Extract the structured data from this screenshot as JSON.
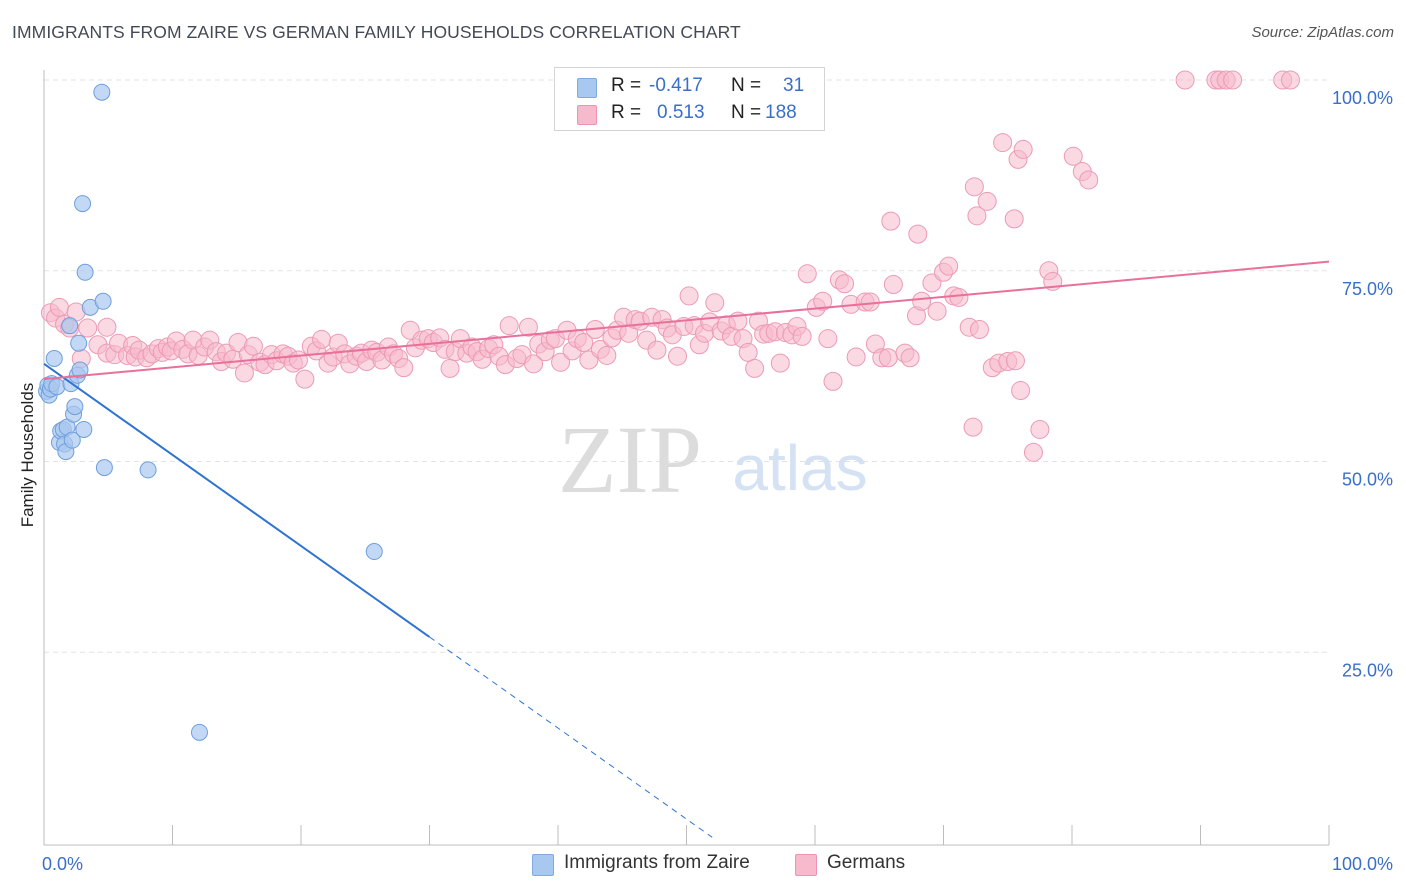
{
  "header": {
    "title": "IMMIGRANTS FROM ZAIRE VS GERMAN FAMILY HOUSEHOLDS CORRELATION CHART",
    "source": "Source: ZipAtlas.com"
  },
  "watermark": {
    "zip": "ZIP",
    "atlas": "atlas"
  },
  "legend": {
    "r_label": "R =",
    "n_label": "N =",
    "rows": [
      {
        "r": "-0.417",
        "n": "31",
        "color": "#a9c8f0"
      },
      {
        "r": "0.513",
        "n": "188",
        "color": "#f7b9cc"
      }
    ]
  },
  "bottom_legend": {
    "items": [
      {
        "label": "Immigrants from Zaire",
        "color": "#a9c8f0"
      },
      {
        "label": "Germans",
        "color": "#f7b9cc"
      }
    ]
  },
  "colors": {
    "blue_line": "#2f74d0",
    "pink_line": "#e8709a",
    "blue_fill": "#a9c8f0",
    "pink_fill": "#f7b9cc",
    "tick_label": "#3a6fc9",
    "grid": "#e3e3e3"
  },
  "chart_data": {
    "type": "scatter",
    "title": "IMMIGRANTS FROM ZAIRE VS GERMAN FAMILY HOUSEHOLDS CORRELATION CHART",
    "xlabel": "",
    "ylabel": "Family Households",
    "xlim": [
      0,
      100
    ],
    "ylim": [
      0,
      100
    ],
    "x_tick_labels": [
      "0.0%",
      "100.0%"
    ],
    "y_tick_labels": [
      "25.0%",
      "50.0%",
      "75.0%",
      "100.0%"
    ],
    "y_ticks": [
      25,
      50,
      75,
      100
    ],
    "grid": true,
    "legend_position": "top-center",
    "series": [
      {
        "name": "Immigrants from Zaire",
        "r": -0.417,
        "n": 31,
        "trend": {
          "x0": 0,
          "y0": 62.8,
          "x1": 30,
          "y1": 27.0,
          "dash_to_x": 52
        },
        "points": [
          [
            0.2,
            59.2
          ],
          [
            0.3,
            60.0
          ],
          [
            0.4,
            58.7
          ],
          [
            0.5,
            59.5
          ],
          [
            0.6,
            60.2
          ],
          [
            0.8,
            63.5
          ],
          [
            1.0,
            59.8
          ],
          [
            1.2,
            52.5
          ],
          [
            1.3,
            54.0
          ],
          [
            1.5,
            54.2
          ],
          [
            1.6,
            52.3
          ],
          [
            1.7,
            51.3
          ],
          [
            1.8,
            54.5
          ],
          [
            2.0,
            67.8
          ],
          [
            2.1,
            60.2
          ],
          [
            2.2,
            52.8
          ],
          [
            2.3,
            56.2
          ],
          [
            2.4,
            57.2
          ],
          [
            2.6,
            61.3
          ],
          [
            2.7,
            65.5
          ],
          [
            2.8,
            62.0
          ],
          [
            3.0,
            83.8
          ],
          [
            3.1,
            54.2
          ],
          [
            3.2,
            74.8
          ],
          [
            3.6,
            70.2
          ],
          [
            4.5,
            98.4
          ],
          [
            4.6,
            71.0
          ],
          [
            4.7,
            49.2
          ],
          [
            8.1,
            48.9
          ],
          [
            25.7,
            38.2
          ],
          [
            12.1,
            14.5
          ]
        ]
      },
      {
        "name": "Germans",
        "r": 0.513,
        "n": 188,
        "trend": {
          "x0": 0,
          "y0": 60.8,
          "x1": 100,
          "y1": 76.2
        },
        "points": [
          [
            0.5,
            69.5
          ],
          [
            0.9,
            68.8
          ],
          [
            1.2,
            70.2
          ],
          [
            1.6,
            68.0
          ],
          [
            2.0,
            67.5
          ],
          [
            2.5,
            69.6
          ],
          [
            2.9,
            63.5
          ],
          [
            3.4,
            67.5
          ],
          [
            4.2,
            65.3
          ],
          [
            4.9,
            67.6
          ],
          [
            4.9,
            64.2
          ],
          [
            5.5,
            64.0
          ],
          [
            5.8,
            65.5
          ],
          [
            6.5,
            63.9
          ],
          [
            6.9,
            65.2
          ],
          [
            7.1,
            63.7
          ],
          [
            7.4,
            64.6
          ],
          [
            8.0,
            63.6
          ],
          [
            8.4,
            64.1
          ],
          [
            8.9,
            64.8
          ],
          [
            9.2,
            64.3
          ],
          [
            9.6,
            65.0
          ],
          [
            9.9,
            64.5
          ],
          [
            10.3,
            65.8
          ],
          [
            10.8,
            64.7
          ],
          [
            11.2,
            64.1
          ],
          [
            11.6,
            65.9
          ],
          [
            12.0,
            63.9
          ],
          [
            12.5,
            65.0
          ],
          [
            12.9,
            65.9
          ],
          [
            13.4,
            64.4
          ],
          [
            13.8,
            63.1
          ],
          [
            14.2,
            64.2
          ],
          [
            14.7,
            63.4
          ],
          [
            15.1,
            65.6
          ],
          [
            15.6,
            61.6
          ],
          [
            15.9,
            64.0
          ],
          [
            16.3,
            65.1
          ],
          [
            16.8,
            63.0
          ],
          [
            17.2,
            62.7
          ],
          [
            17.7,
            64.0
          ],
          [
            18.1,
            63.2
          ],
          [
            18.6,
            64.1
          ],
          [
            19.0,
            63.8
          ],
          [
            19.4,
            62.9
          ],
          [
            19.8,
            63.3
          ],
          [
            20.3,
            60.8
          ],
          [
            20.8,
            65.1
          ],
          [
            21.2,
            64.5
          ],
          [
            21.6,
            66.0
          ],
          [
            22.1,
            62.9
          ],
          [
            22.5,
            63.7
          ],
          [
            22.9,
            65.5
          ],
          [
            23.4,
            64.1
          ],
          [
            23.8,
            62.8
          ],
          [
            24.3,
            63.8
          ],
          [
            24.7,
            64.2
          ],
          [
            25.1,
            63.1
          ],
          [
            25.5,
            64.6
          ],
          [
            25.9,
            64.3
          ],
          [
            26.3,
            63.3
          ],
          [
            26.8,
            65.0
          ],
          [
            27.2,
            64.1
          ],
          [
            27.6,
            63.5
          ],
          [
            28.0,
            62.3
          ],
          [
            28.5,
            67.2
          ],
          [
            28.9,
            64.9
          ],
          [
            29.4,
            65.9
          ],
          [
            29.9,
            66.1
          ],
          [
            30.3,
            65.6
          ],
          [
            30.8,
            66.2
          ],
          [
            31.2,
            64.7
          ],
          [
            31.6,
            62.2
          ],
          [
            32.0,
            64.4
          ],
          [
            32.4,
            66.1
          ],
          [
            32.9,
            64.2
          ],
          [
            33.3,
            65.0
          ],
          [
            33.7,
            64.4
          ],
          [
            34.1,
            63.4
          ],
          [
            34.6,
            64.8
          ],
          [
            35.0,
            65.3
          ],
          [
            35.4,
            63.8
          ],
          [
            35.9,
            62.7
          ],
          [
            36.2,
            67.8
          ],
          [
            36.8,
            63.5
          ],
          [
            37.2,
            64.0
          ],
          [
            37.7,
            67.6
          ],
          [
            38.1,
            62.8
          ],
          [
            38.5,
            65.4
          ],
          [
            39.0,
            64.4
          ],
          [
            39.4,
            65.9
          ],
          [
            39.8,
            66.1
          ],
          [
            40.2,
            63.0
          ],
          [
            40.7,
            67.2
          ],
          [
            41.1,
            64.5
          ],
          [
            41.5,
            66.1
          ],
          [
            42.0,
            65.6
          ],
          [
            42.4,
            63.3
          ],
          [
            42.9,
            67.3
          ],
          [
            43.3,
            64.7
          ],
          [
            43.8,
            63.9
          ],
          [
            44.2,
            66.2
          ],
          [
            44.6,
            67.2
          ],
          [
            45.1,
            68.9
          ],
          [
            45.5,
            66.8
          ],
          [
            46.0,
            68.6
          ],
          [
            46.4,
            68.4
          ],
          [
            46.9,
            65.9
          ],
          [
            47.3,
            68.9
          ],
          [
            47.7,
            64.6
          ],
          [
            48.1,
            68.6
          ],
          [
            48.5,
            67.5
          ],
          [
            48.9,
            66.6
          ],
          [
            49.3,
            63.8
          ],
          [
            49.8,
            67.7
          ],
          [
            50.2,
            71.7
          ],
          [
            50.6,
            67.8
          ],
          [
            51.0,
            65.3
          ],
          [
            51.4,
            66.8
          ],
          [
            51.8,
            68.3
          ],
          [
            52.2,
            70.8
          ],
          [
            52.7,
            67.1
          ],
          [
            53.1,
            67.9
          ],
          [
            53.5,
            66.4
          ],
          [
            54.0,
            68.4
          ],
          [
            54.4,
            66.1
          ],
          [
            54.8,
            64.3
          ],
          [
            55.3,
            62.2
          ],
          [
            55.6,
            68.4
          ],
          [
            56.0,
            66.7
          ],
          [
            56.4,
            66.8
          ],
          [
            56.9,
            67.0
          ],
          [
            57.3,
            62.9
          ],
          [
            57.7,
            66.9
          ],
          [
            58.2,
            66.6
          ],
          [
            58.6,
            67.7
          ],
          [
            59.0,
            66.4
          ],
          [
            59.4,
            74.6
          ],
          [
            60.1,
            70.2
          ],
          [
            60.6,
            71.0
          ],
          [
            61.0,
            66.1
          ],
          [
            61.4,
            60.5
          ],
          [
            61.9,
            73.8
          ],
          [
            62.3,
            73.3
          ],
          [
            62.8,
            70.6
          ],
          [
            63.2,
            63.7
          ],
          [
            63.9,
            70.9
          ],
          [
            64.3,
            70.9
          ],
          [
            64.7,
            65.4
          ],
          [
            65.2,
            63.6
          ],
          [
            65.7,
            63.6
          ],
          [
            66.1,
            73.2
          ],
          [
            67.0,
            64.2
          ],
          [
            67.4,
            63.6
          ],
          [
            67.9,
            69.1
          ],
          [
            68.3,
            71.0
          ],
          [
            69.1,
            73.4
          ],
          [
            69.5,
            69.7
          ],
          [
            70.0,
            74.8
          ],
          [
            70.4,
            75.6
          ],
          [
            70.8,
            71.7
          ],
          [
            71.2,
            71.5
          ],
          [
            72.0,
            67.6
          ],
          [
            72.3,
            54.5
          ],
          [
            72.8,
            67.3
          ],
          [
            73.8,
            62.3
          ],
          [
            74.3,
            62.9
          ],
          [
            75.0,
            63.1
          ],
          [
            75.6,
            63.2
          ],
          [
            76.0,
            59.3
          ],
          [
            77.0,
            51.2
          ],
          [
            77.5,
            54.2
          ],
          [
            65.9,
            81.5
          ],
          [
            68.0,
            79.8
          ],
          [
            72.4,
            86.0
          ],
          [
            72.6,
            82.2
          ],
          [
            73.4,
            84.1
          ],
          [
            74.6,
            91.8
          ],
          [
            75.5,
            81.8
          ],
          [
            75.8,
            89.6
          ],
          [
            76.2,
            90.9
          ],
          [
            78.2,
            75.0
          ],
          [
            78.5,
            73.6
          ],
          [
            80.1,
            90.0
          ],
          [
            80.8,
            88.0
          ],
          [
            81.3,
            86.9
          ],
          [
            88.8,
            100.0
          ],
          [
            91.2,
            100.0
          ],
          [
            91.5,
            100.0
          ],
          [
            92.0,
            100.0
          ],
          [
            92.5,
            100.0
          ],
          [
            96.4,
            100.0
          ],
          [
            97.0,
            100.0
          ]
        ]
      }
    ]
  }
}
